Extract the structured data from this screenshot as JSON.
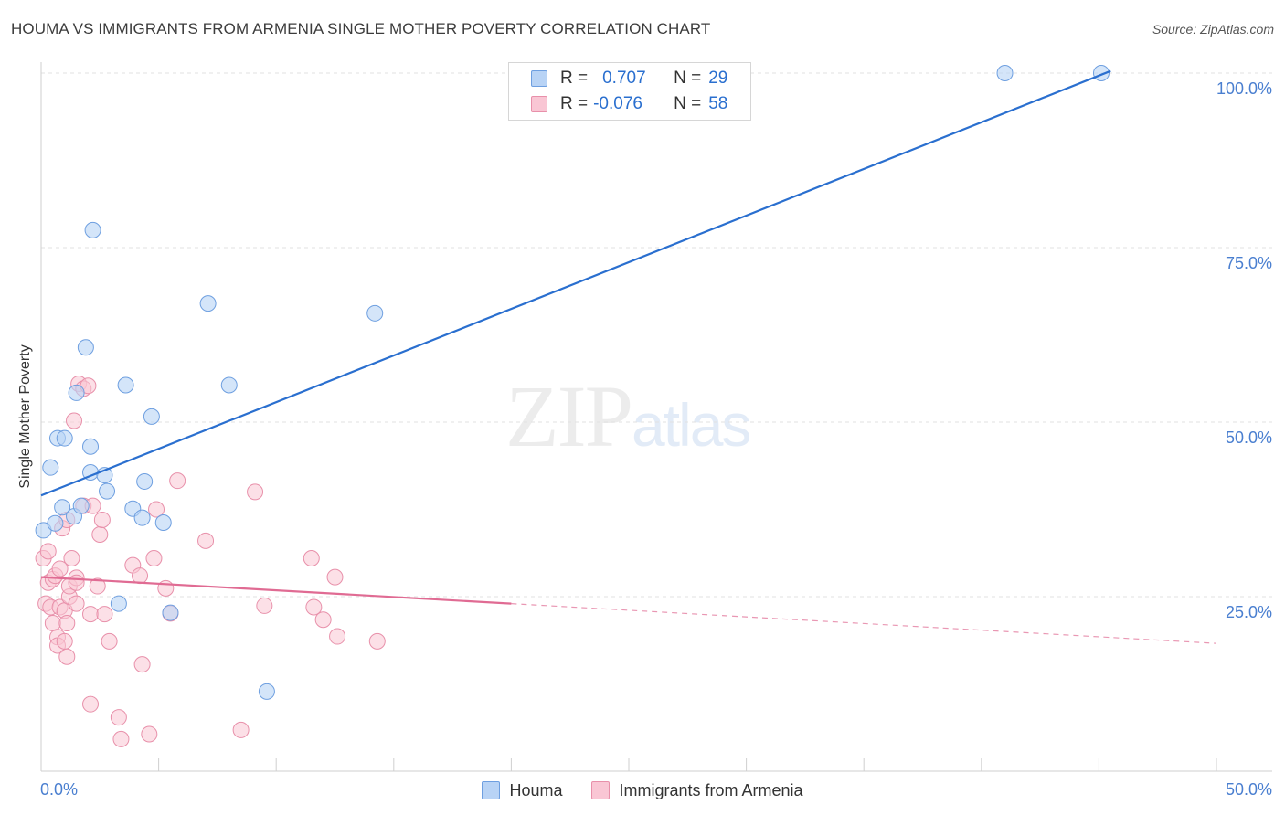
{
  "header": {
    "title": "HOUMA VS IMMIGRANTS FROM ARMENIA SINGLE MOTHER POVERTY CORRELATION CHART",
    "source": "Source: ZipAtlas.com"
  },
  "legend_top": {
    "row1": {
      "r_label": "R =",
      "r_value": "0.707",
      "n_label": "N =",
      "n_value": "29"
    },
    "row2": {
      "r_label": "R =",
      "r_value": "-0.076",
      "n_label": "N =",
      "n_value": "58"
    }
  },
  "legend_bottom": {
    "series1": "Houma",
    "series2": "Immigrants from Armenia"
  },
  "watermark": {
    "zip": "ZIP",
    "atlas": "atlas"
  },
  "colors": {
    "houma_fill": "#b8d3f5",
    "houma_stroke": "#6e9fe0",
    "houma_line": "#2a6fcf",
    "armenia_fill": "#f9c6d4",
    "armenia_stroke": "#e890aa",
    "armenia_line": "#e06b93",
    "axis_text": "#4a7fd0",
    "grid": "#e2e2e2"
  },
  "chart_data": {
    "type": "scatter",
    "title": "HOUMA VS IMMIGRANTS FROM ARMENIA SINGLE MOTHER POVERTY CORRELATION CHART",
    "xlabel": "",
    "ylabel": "Single Mother Poverty",
    "xlim": [
      0,
      50
    ],
    "ylim": [
      0,
      100
    ],
    "x_tick_labels": [
      "0.0%",
      "50.0%"
    ],
    "y_ticks": [
      25,
      50,
      75,
      100
    ],
    "y_tick_labels": [
      "25.0%",
      "50.0%",
      "75.0%",
      "100.0%"
    ],
    "grid": true,
    "legend_position": "top-center",
    "series": [
      {
        "name": "Houma",
        "r": 0.707,
        "n": 29,
        "trend": {
          "x": [
            0,
            45.5
          ],
          "y": [
            39.5,
            100.3
          ]
        },
        "points": [
          [
            0.1,
            34.5
          ],
          [
            0.4,
            43.5
          ],
          [
            0.6,
            35.5
          ],
          [
            0.7,
            47.7
          ],
          [
            0.9,
            37.8
          ],
          [
            1.0,
            47.7
          ],
          [
            1.4,
            36.5
          ],
          [
            1.5,
            54.2
          ],
          [
            1.7,
            38.0
          ],
          [
            1.9,
            60.7
          ],
          [
            2.1,
            46.5
          ],
          [
            2.1,
            42.8
          ],
          [
            2.2,
            77.5
          ],
          [
            2.7,
            42.4
          ],
          [
            2.8,
            40.1
          ],
          [
            3.3,
            24.0
          ],
          [
            3.6,
            55.3
          ],
          [
            3.9,
            37.6
          ],
          [
            4.3,
            36.3
          ],
          [
            4.4,
            41.5
          ],
          [
            4.7,
            50.8
          ],
          [
            5.2,
            35.6
          ],
          [
            5.5,
            22.7
          ],
          [
            7.1,
            67.0
          ],
          [
            8.0,
            55.3
          ],
          [
            9.6,
            11.4
          ],
          [
            14.2,
            65.6
          ],
          [
            41.0,
            100.0
          ],
          [
            45.1,
            100.0
          ]
        ]
      },
      {
        "name": "Immigrants from Armenia",
        "r": -0.076,
        "n": 58,
        "trend": {
          "x": [
            0,
            20
          ],
          "y": [
            27.8,
            24.0
          ]
        },
        "trend_dashed": {
          "x": [
            20,
            50
          ],
          "y": [
            24.0,
            18.3
          ]
        },
        "points": [
          [
            0.1,
            30.5
          ],
          [
            0.2,
            24.0
          ],
          [
            0.3,
            31.5
          ],
          [
            0.3,
            27.0
          ],
          [
            0.4,
            23.5
          ],
          [
            0.5,
            27.5
          ],
          [
            0.5,
            21.2
          ],
          [
            0.6,
            28.0
          ],
          [
            0.7,
            19.2
          ],
          [
            0.7,
            18.0
          ],
          [
            0.8,
            29.0
          ],
          [
            0.8,
            23.5
          ],
          [
            0.9,
            34.8
          ],
          [
            1.0,
            23.0
          ],
          [
            1.0,
            18.6
          ],
          [
            1.1,
            16.4
          ],
          [
            1.1,
            36.0
          ],
          [
            1.1,
            21.2
          ],
          [
            1.2,
            25.0
          ],
          [
            1.2,
            26.5
          ],
          [
            1.3,
            30.5
          ],
          [
            1.4,
            50.2
          ],
          [
            1.5,
            27.7
          ],
          [
            1.5,
            24.0
          ],
          [
            1.5,
            27.0
          ],
          [
            1.6,
            55.5
          ],
          [
            1.8,
            38.0
          ],
          [
            1.8,
            54.8
          ],
          [
            2.0,
            55.2
          ],
          [
            2.1,
            22.5
          ],
          [
            2.1,
            9.6
          ],
          [
            2.2,
            38.0
          ],
          [
            2.4,
            26.5
          ],
          [
            2.5,
            33.9
          ],
          [
            2.6,
            36.0
          ],
          [
            2.7,
            22.5
          ],
          [
            2.9,
            18.6
          ],
          [
            3.3,
            7.7
          ],
          [
            3.4,
            4.6
          ],
          [
            3.9,
            29.5
          ],
          [
            4.2,
            28.0
          ],
          [
            4.3,
            15.3
          ],
          [
            4.6,
            5.3
          ],
          [
            4.8,
            30.5
          ],
          [
            4.9,
            37.5
          ],
          [
            5.3,
            26.2
          ],
          [
            5.5,
            22.6
          ],
          [
            5.8,
            41.6
          ],
          [
            7.0,
            33.0
          ],
          [
            8.5,
            5.9
          ],
          [
            9.1,
            40.0
          ],
          [
            9.5,
            23.7
          ],
          [
            11.5,
            30.5
          ],
          [
            11.6,
            23.5
          ],
          [
            12.0,
            21.7
          ],
          [
            12.5,
            27.8
          ],
          [
            12.6,
            19.3
          ],
          [
            14.3,
            18.6
          ]
        ]
      }
    ]
  }
}
